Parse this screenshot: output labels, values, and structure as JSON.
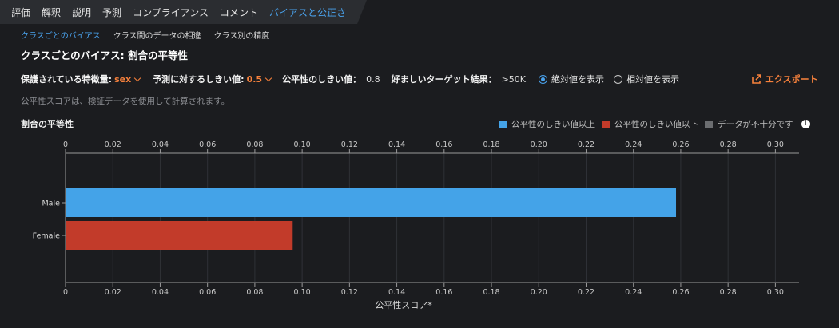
{
  "tabs": [
    "評価",
    "解釈",
    "説明",
    "予測",
    "コンプライアンス",
    "コメント",
    "バイアスと公正さ"
  ],
  "subtabs": [
    "クラスごとのバイアス",
    "クラス間のデータの相違",
    "クラス別の精度"
  ],
  "page_title": "クラスごとのバイアス: 割合の平等性",
  "controls": {
    "feature_label": "保護されている特徴量:",
    "feature_value": "sex",
    "threshold_label": "予測に対するしきい値:",
    "threshold_value": "0.5",
    "fairness_label": "公平性のしきい値：",
    "fairness_value": "0.8",
    "target_label": "好ましいターゲット結果：",
    "target_value": ">50K",
    "radio_absolute": "絶対値を表示",
    "radio_relative": "相対値を表示",
    "selected_radio": "absolute"
  },
  "export_label": "エクスポート",
  "note": "公平性スコアは、検証データを使用して計算されます。",
  "chart_title": "割合の平等性",
  "legend": {
    "above": "公平性のしきい値以上",
    "below": "公平性のしきい値以下",
    "insufficient": "データが不十分です",
    "info_glyph": "i"
  },
  "colors": {
    "accent": "#4aa3ee",
    "orange": "#f7813c",
    "above": "#44a3e8",
    "below": "#c23b2a",
    "insufficient": "#6b6d70"
  },
  "icons": [
    "chevron-down-icon",
    "export-icon",
    "info-icon"
  ],
  "chart_data": {
    "type": "bar",
    "orientation": "horizontal",
    "categories": [
      "Male",
      "Female"
    ],
    "values": [
      0.258,
      0.096
    ],
    "status": [
      "above",
      "below"
    ],
    "xlim": [
      0,
      0.31
    ],
    "xticks": [
      "0",
      "0.02",
      "0.04",
      "0.06",
      "0.08",
      "0.10",
      "0.12",
      "0.14",
      "0.16",
      "0.18",
      "0.20",
      "0.22",
      "0.24",
      "0.26",
      "0.28",
      "0.30"
    ],
    "xlabel": "公平性スコア*",
    "grid": true
  }
}
